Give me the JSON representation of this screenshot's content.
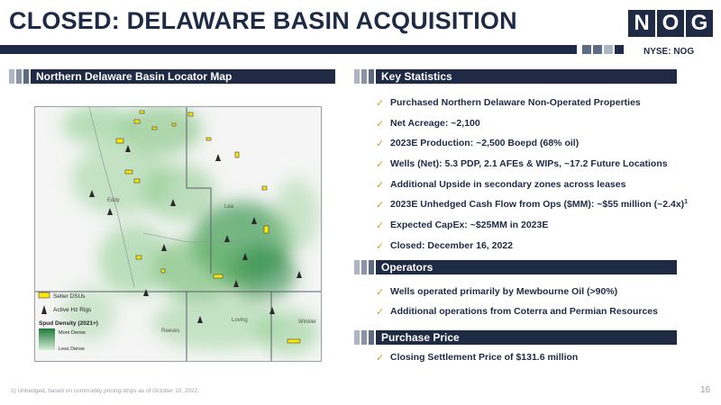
{
  "title": "CLOSED: DELAWARE BASIN ACQUISITION",
  "logo": {
    "letters": [
      "N",
      "O",
      "G"
    ],
    "ticker": "NYSE: NOG"
  },
  "colors": {
    "navy": "#1f2a44",
    "gold": "#c9a227",
    "slate": "#5f6b80",
    "light": "#aeb6c4"
  },
  "map_section": {
    "title": "Northern Delaware Basin Locator Map",
    "labels": {
      "eddy": "Eddy",
      "lea": "Lea",
      "loving": "Loving",
      "winkler": "Winkler",
      "reeves": "Reeves"
    },
    "legend": {
      "seller_dsus": "Seller DSUs",
      "active_rigs": "Active Hz Rigs",
      "spud_density": "Spud Density (2021+)",
      "more_dense": "More Dense",
      "less_dense": "Less Dense"
    }
  },
  "key_statistics": {
    "title": "Key Statistics",
    "items": [
      {
        "text": "Purchased Northern Delaware Non-Operated Properties"
      },
      {
        "text": "Net Acreage: ~2,100"
      },
      {
        "text": "2023E Production: ~2,500 Boepd (68% oil)"
      },
      {
        "text": "Wells (Net): 5.3 PDP, 2.1 AFEs & WIPs, ~17.2 Future Locations"
      },
      {
        "text": "Additional Upside in secondary zones across leases"
      },
      {
        "text": "2023E Unhedged Cash Flow from Ops ($MM):  ~$55 million (~2.4x)",
        "sup": "1"
      },
      {
        "text": "Expected CapEx: ~$25MM in 2023E"
      },
      {
        "text": "Closed: December 16, 2022"
      }
    ]
  },
  "operators": {
    "title": "Operators",
    "items": [
      {
        "text": "Wells operated primarily by Mewbourne Oil (>90%)"
      },
      {
        "text": "Additional operations from Coterra and Permian Resources"
      }
    ]
  },
  "purchase_price": {
    "title": "Purchase Price",
    "items": [
      {
        "text": "Closing Settlement Price of $131.6 million"
      }
    ]
  },
  "footnote": "1) Unhedged, based on commodity pricing strips as of October 10, 2022.",
  "page_number": "16",
  "check_glyph": "✓"
}
